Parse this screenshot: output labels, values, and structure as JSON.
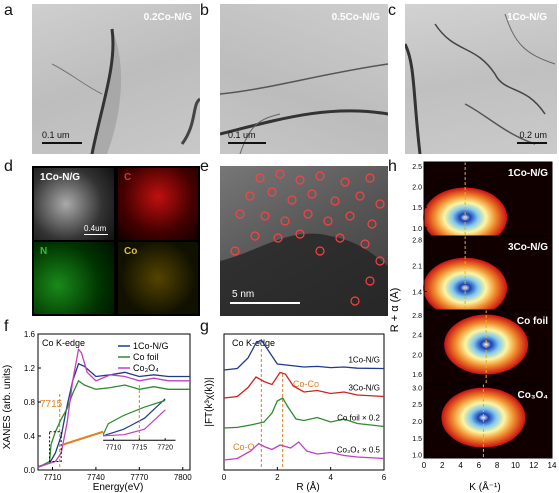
{
  "panels": {
    "a": {
      "letter": "a",
      "label": "0.2Co-N/G",
      "scale": "0.1 um"
    },
    "b": {
      "letter": "b",
      "label": "0.5Co-N/G",
      "scale": "0.1 um"
    },
    "c": {
      "letter": "c",
      "label": "1Co-N/G",
      "scale": "0.2 um"
    },
    "d": {
      "letter": "d",
      "tiles": [
        "1Co-N/G",
        "C",
        "N",
        "Co"
      ],
      "scale": "0.4um"
    },
    "e": {
      "letter": "e",
      "scale": "5 nm"
    },
    "f": {
      "letter": "f",
      "title": "Co K-edge",
      "ylabel": "XANES (arb. units)",
      "xlabel": "Energy(eV)",
      "annot": "7715"
    },
    "g": {
      "letter": "g",
      "title": "Co K-edge",
      "ylabel": "|FT(k³χ(k))|",
      "xlabel": "R (Å)",
      "annot_coco": "Co-Co",
      "annot_coo": "Co-O"
    },
    "h": {
      "letter": "h",
      "ylabel": "R + α (Å)",
      "xlabel": "K (Å⁻¹)"
    }
  },
  "chart_data": [
    {
      "type": "line",
      "title": "Co K-edge",
      "xlabel": "Energy(eV)",
      "ylabel": "XANES (arb. units)",
      "xlim": [
        7700,
        7805
      ],
      "ylim": [
        0,
        1.6
      ],
      "xticks": [
        7710,
        7740,
        7770,
        7800
      ],
      "yticks": [
        0.0,
        0.4,
        0.8,
        1.2,
        1.6
      ],
      "legend": [
        "1Co-N/G",
        "Co foil",
        "Co3O4"
      ],
      "inset_xticks": [
        7710,
        7715,
        7720
      ],
      "series": [
        {
          "name": "1Co-N/G",
          "color": "#1f3a8a",
          "x": [
            7700,
            7708,
            7712,
            7716,
            7720,
            7724,
            7728,
            7732,
            7740,
            7750,
            7760,
            7770,
            7780,
            7790,
            7800,
            7805
          ],
          "y": [
            0.04,
            0.08,
            0.2,
            0.4,
            0.75,
            1.05,
            1.25,
            1.22,
            1.1,
            1.12,
            1.15,
            1.1,
            1.12,
            1.1,
            1.1,
            1.1
          ]
        },
        {
          "name": "Co foil",
          "color": "#2e8b2e",
          "x": [
            7700,
            7708,
            7709,
            7712,
            7716,
            7720,
            7724,
            7728,
            7732,
            7740,
            7750,
            7760,
            7770,
            7780,
            7790,
            7800,
            7805
          ],
          "y": [
            0.03,
            0.1,
            0.3,
            0.45,
            0.6,
            0.72,
            0.9,
            1.05,
            1.0,
            0.95,
            0.97,
            1.0,
            0.95,
            0.98,
            0.95,
            0.95,
            0.95
          ]
        },
        {
          "name": "Co3O4",
          "color": "#c040c0",
          "x": [
            7700,
            7708,
            7712,
            7716,
            7720,
            7724,
            7728,
            7730,
            7734,
            7740,
            7750,
            7760,
            7770,
            7780,
            7790,
            7800,
            7805
          ],
          "y": [
            0.03,
            0.08,
            0.1,
            0.2,
            0.55,
            1.05,
            1.42,
            1.38,
            1.15,
            1.05,
            1.12,
            1.1,
            1.05,
            1.08,
            1.05,
            1.05,
            1.05
          ]
        }
      ]
    },
    {
      "type": "line",
      "title": "Co K-edge",
      "xlabel": "R (Å)",
      "ylabel": "|FT(k³χ(k))|",
      "xlim": [
        0,
        6
      ],
      "xticks": [
        0,
        2,
        4,
        6
      ],
      "series": [
        {
          "name": "1Co-N/G",
          "color": "#1f3a8a",
          "x": [
            0,
            0.5,
            0.9,
            1.2,
            1.4,
            1.7,
            2.0,
            2.5,
            3.0,
            3.5,
            4.0,
            4.5,
            5.0,
            6.0
          ],
          "y": [
            0.0,
            0.05,
            0.4,
            0.9,
            1.0,
            0.6,
            0.2,
            0.15,
            0.1,
            0.12,
            0.08,
            0.1,
            0.06,
            0.05
          ]
        },
        {
          "name": "3Co-N/G",
          "color": "#d02020",
          "x": [
            0,
            0.5,
            0.9,
            1.2,
            1.5,
            1.8,
            2.1,
            2.3,
            2.6,
            3.0,
            3.5,
            4.0,
            4.5,
            5.0,
            6.0
          ],
          "y": [
            0.0,
            0.05,
            0.35,
            0.7,
            0.55,
            0.45,
            0.85,
            0.8,
            0.4,
            0.2,
            0.25,
            0.15,
            0.2,
            0.1,
            0.05
          ]
        },
        {
          "name": "Co foil × 0.2",
          "color": "#2e8b2e",
          "x": [
            0,
            0.5,
            1.0,
            1.5,
            1.8,
            2.0,
            2.2,
            2.4,
            2.7,
            3.0,
            3.5,
            4.0,
            4.5,
            5.0,
            6.0
          ],
          "y": [
            0.0,
            0.02,
            0.1,
            0.2,
            0.5,
            0.9,
            1.0,
            0.7,
            0.3,
            0.25,
            0.35,
            0.2,
            0.3,
            0.15,
            0.05
          ]
        },
        {
          "name": "Co3O4 × 0.5",
          "color": "#c040c0",
          "x": [
            0,
            0.5,
            1.0,
            1.3,
            1.5,
            1.8,
            2.1,
            2.5,
            2.8,
            3.1,
            3.5,
            4.0,
            4.5,
            5.0,
            6.0
          ],
          "y": [
            0.0,
            0.05,
            0.3,
            0.55,
            0.45,
            0.35,
            0.5,
            0.4,
            0.6,
            0.3,
            0.2,
            0.25,
            0.15,
            0.1,
            0.05
          ]
        }
      ]
    },
    {
      "type": "heatmap",
      "xlabel": "K (Å⁻¹)",
      "ylabel": "R + α (Å)",
      "xlim": [
        0,
        14
      ],
      "xticks": [
        0,
        2,
        4,
        6,
        8,
        10,
        12,
        14
      ],
      "maps": [
        {
          "name": "1Co-N/G",
          "yticks": [
            1.0,
            1.5,
            2.0,
            2.5
          ],
          "ylim": [
            0.8,
            2.6
          ]
        },
        {
          "name": "3Co-N/G",
          "yticks": [
            1.4,
            2.1,
            2.8
          ],
          "ylim": [
            0.9,
            2.9
          ]
        },
        {
          "name": "Co foil",
          "yticks": [
            1.6,
            2.0,
            2.4,
            2.8
          ],
          "ylim": [
            1.4,
            2.9
          ]
        },
        {
          "name": "Co3O4",
          "yticks": [
            1.0,
            1.5,
            2.0,
            2.5,
            3.0
          ],
          "ylim": [
            0.9,
            3.1
          ]
        }
      ]
    }
  ]
}
